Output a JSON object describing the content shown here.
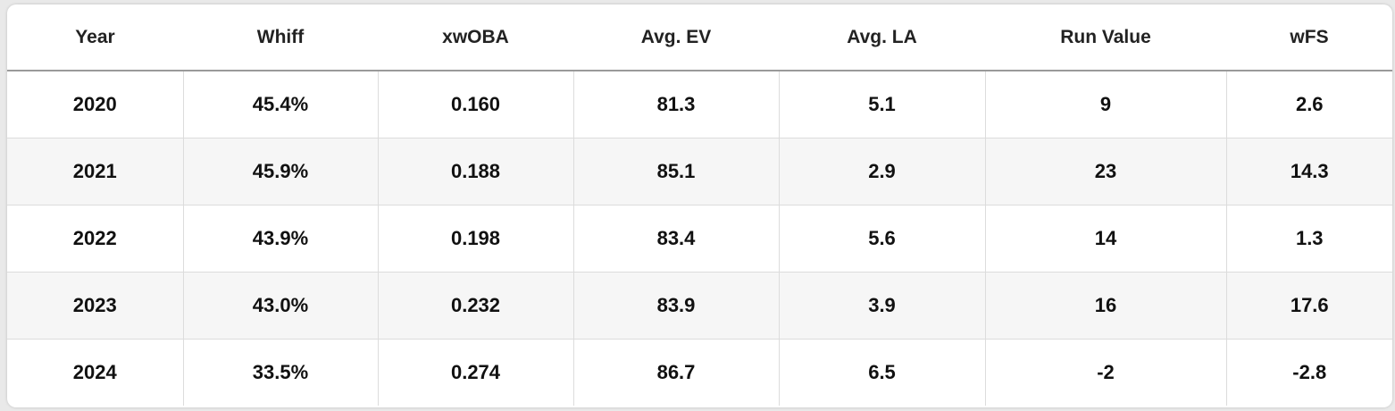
{
  "table": {
    "headers": [
      "Year",
      "Whiff",
      "xwOBA",
      "Avg. EV",
      "Avg. LA",
      "Run Value",
      "wFS"
    ],
    "rows": [
      [
        "2020",
        "45.4%",
        "0.160",
        "81.3",
        "5.1",
        "9",
        "2.6"
      ],
      [
        "2021",
        "45.9%",
        "0.188",
        "85.1",
        "2.9",
        "23",
        "14.3"
      ],
      [
        "2022",
        "43.9%",
        "0.198",
        "83.4",
        "5.6",
        "14",
        "1.3"
      ],
      [
        "2023",
        "43.0%",
        "0.232",
        "83.9",
        "3.9",
        "16",
        "17.6"
      ],
      [
        "2024",
        "33.5%",
        "0.274",
        "86.7",
        "6.5",
        "-2",
        "-2.8"
      ]
    ]
  }
}
